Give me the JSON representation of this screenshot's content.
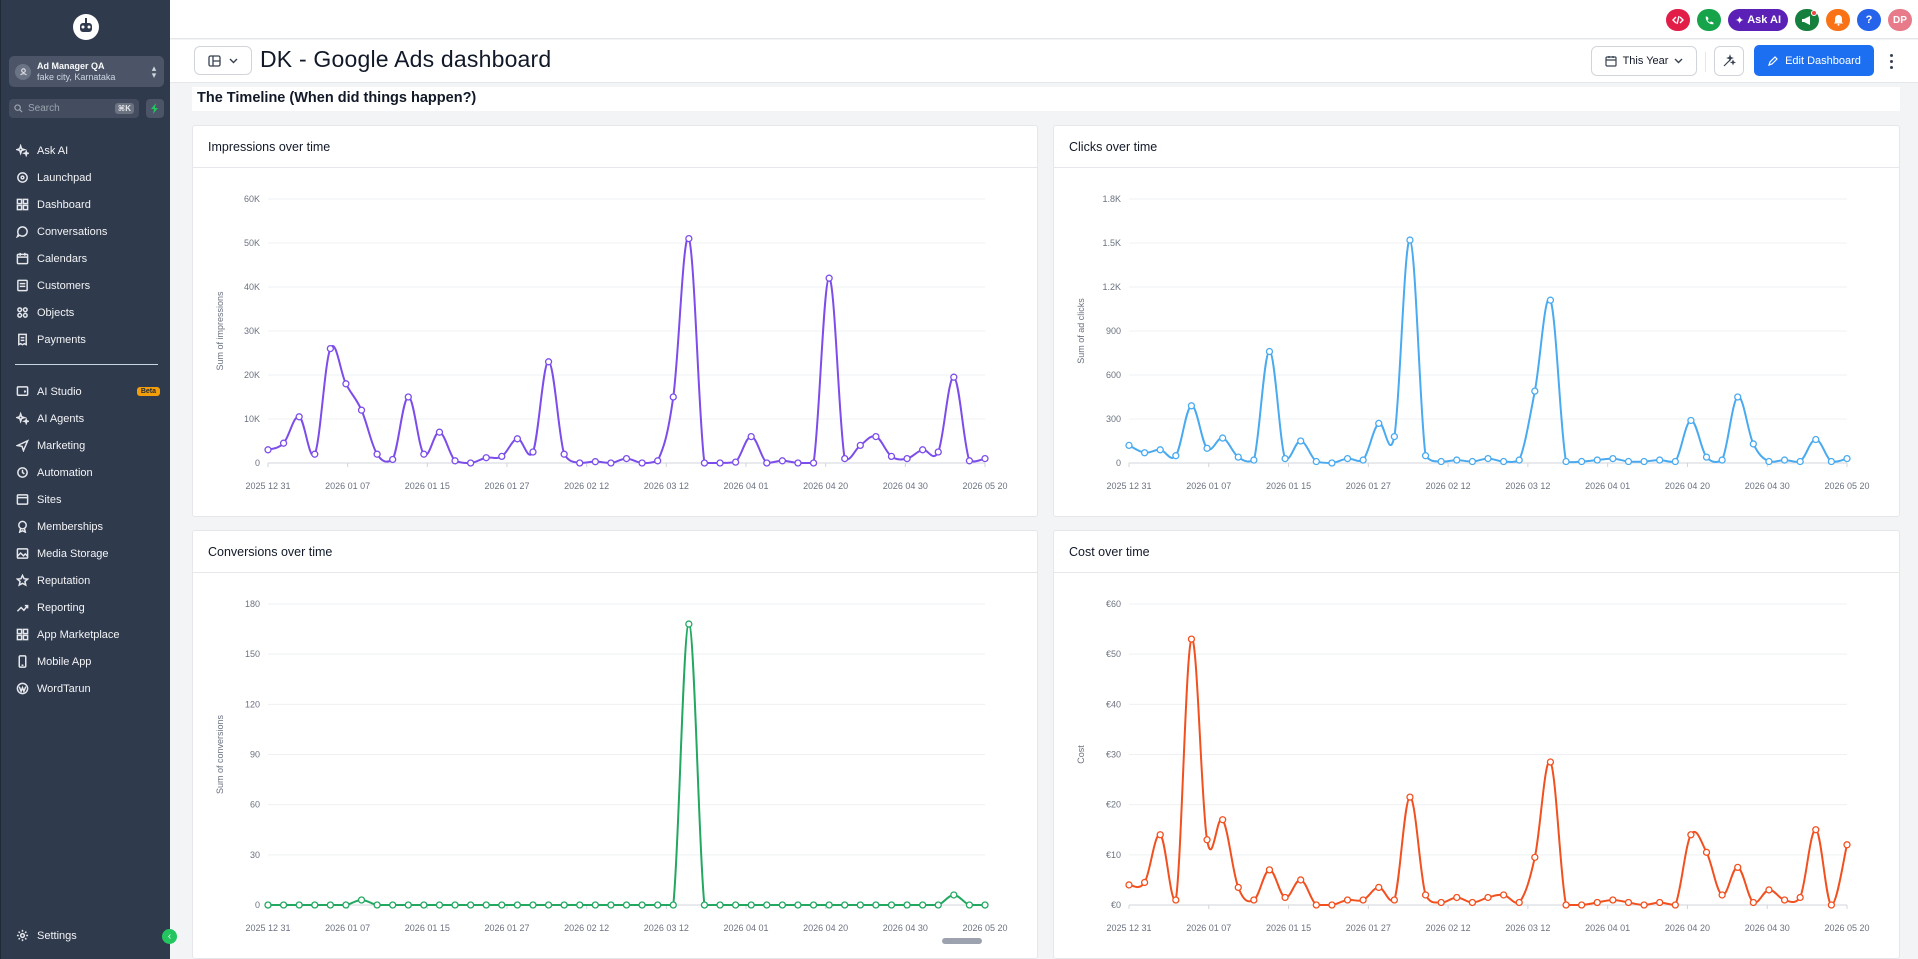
{
  "sidebar": {
    "account": {
      "name": "Ad Manager QA",
      "location": "fake city, Karnataka"
    },
    "search": {
      "placeholder": "Search",
      "shortcut": "⌘K"
    },
    "items": [
      {
        "label": "Ask AI",
        "icon": "sparkle-icon"
      },
      {
        "label": "Launchpad",
        "icon": "rocket-icon"
      },
      {
        "label": "Dashboard",
        "icon": "grid-icon"
      },
      {
        "label": "Conversations",
        "icon": "chat-icon"
      },
      {
        "label": "Calendars",
        "icon": "calendar-icon"
      },
      {
        "label": "Customers",
        "icon": "contacts-icon"
      },
      {
        "label": "Objects",
        "icon": "objects-icon"
      },
      {
        "label": "Payments",
        "icon": "receipt-icon"
      }
    ],
    "items2": [
      {
        "label": "AI Studio",
        "icon": "ai-studio-icon",
        "badge": "Beta"
      },
      {
        "label": "AI Agents",
        "icon": "sparkle-icon"
      },
      {
        "label": "Marketing",
        "icon": "send-icon"
      },
      {
        "label": "Automation",
        "icon": "automation-icon"
      },
      {
        "label": "Sites",
        "icon": "sites-icon"
      },
      {
        "label": "Memberships",
        "icon": "award-icon"
      },
      {
        "label": "Media Storage",
        "icon": "image-icon"
      },
      {
        "label": "Reputation",
        "icon": "star-icon"
      },
      {
        "label": "Reporting",
        "icon": "trend-icon"
      },
      {
        "label": "App Marketplace",
        "icon": "apps-icon"
      },
      {
        "label": "Mobile App",
        "icon": "phone-icon"
      },
      {
        "label": "WordTarun",
        "icon": "wordpress-icon"
      }
    ],
    "settings": "Settings"
  },
  "topbar": {
    "ask_ai": "Ask AI",
    "avatar": "DP"
  },
  "header": {
    "title": "DK - Google Ads dashboard",
    "timeframe": "This Year",
    "edit": "Edit Dashboard"
  },
  "section": {
    "title": "The Timeline (When did things happen?)"
  },
  "colors": {
    "impressions": "#7c4dea",
    "clicks": "#4aaaf0",
    "conversions": "#22a861",
    "cost": "#f2501f",
    "primary": "#1d6ff2",
    "sidebar": "#2f3a4d"
  },
  "chart_data": [
    {
      "type": "line",
      "title": "Impressions over time",
      "ylabel": "Sum of impressions",
      "yticks": [
        "0",
        "10K",
        "20K",
        "30K",
        "40K",
        "50K",
        "60K"
      ],
      "ymax": 60000,
      "xticks": [
        "2025 12 31",
        "2026 01 07",
        "2026 01 15",
        "2026 01 27",
        "2026 02 12",
        "2026 03 12",
        "2026 04 01",
        "2026 04 20",
        "2026 04 30",
        "2026 05 20"
      ],
      "values": [
        3000,
        4500,
        10500,
        2000,
        26000,
        18000,
        12000,
        2000,
        800,
        15000,
        2000,
        7000,
        500,
        0,
        1200,
        1500,
        5500,
        2500,
        23000,
        2000,
        0,
        300,
        0,
        1000,
        0,
        500,
        15000,
        51000,
        0,
        0,
        200,
        6000,
        0,
        500,
        0,
        0,
        42000,
        1000,
        4000,
        6000,
        1500,
        1000,
        3000,
        2500,
        19500,
        500,
        1000
      ]
    },
    {
      "type": "line",
      "title": "Clicks over time",
      "ylabel": "Sum of ad clicks",
      "yticks": [
        "0",
        "300",
        "600",
        "900",
        "1.2K",
        "1.5K",
        "1.8K"
      ],
      "ymax": 1800,
      "xticks": [
        "2025 12 31",
        "2026 01 07",
        "2026 01 15",
        "2026 01 27",
        "2026 02 12",
        "2026 03 12",
        "2026 04 01",
        "2026 04 20",
        "2026 04 30",
        "2026 05 20"
      ],
      "values": [
        120,
        70,
        90,
        50,
        390,
        100,
        170,
        40,
        20,
        760,
        30,
        150,
        10,
        0,
        30,
        20,
        270,
        180,
        1520,
        50,
        10,
        20,
        10,
        30,
        10,
        20,
        490,
        1110,
        10,
        10,
        20,
        30,
        10,
        10,
        20,
        10,
        290,
        40,
        20,
        450,
        130,
        10,
        20,
        10,
        160,
        10,
        30
      ]
    },
    {
      "type": "line",
      "title": "Conversions over time",
      "ylabel": "Sum of conversions",
      "yticks": [
        "0",
        "30",
        "60",
        "90",
        "120",
        "150",
        "180"
      ],
      "ymax": 180,
      "xticks": [
        "2025 12 31",
        "2026 01 07",
        "2026 01 15",
        "2026 01 27",
        "2026 02 12",
        "2026 03 12",
        "2026 04 01",
        "2026 04 20",
        "2026 04 30",
        "2026 05 20"
      ],
      "values": [
        0,
        0,
        0,
        0,
        0,
        0,
        3,
        0,
        0,
        0,
        0,
        0,
        0,
        0,
        0,
        0,
        0,
        0,
        0,
        0,
        0,
        0,
        0,
        0,
        0,
        0,
        0,
        168,
        0,
        0,
        0,
        0,
        0,
        0,
        0,
        0,
        0,
        0,
        0,
        0,
        0,
        0,
        0,
        0,
        6,
        0,
        0
      ]
    },
    {
      "type": "line",
      "title": "Cost over time",
      "ylabel": "Cost",
      "yticks": [
        "€0",
        "€10",
        "€20",
        "€30",
        "€40",
        "€50",
        "€60"
      ],
      "ymax": 60,
      "xticks": [
        "2025 12 31",
        "2026 01 07",
        "2026 01 15",
        "2026 01 27",
        "2026 02 12",
        "2026 03 12",
        "2026 04 01",
        "2026 04 20",
        "2026 04 30",
        "2026 05 20"
      ],
      "values": [
        4,
        4.5,
        14,
        1,
        53,
        13,
        17,
        3.5,
        1,
        7,
        1.5,
        5,
        0,
        0,
        1,
        1,
        3.5,
        1,
        21.5,
        2,
        0.5,
        1.5,
        0.5,
        1.5,
        2,
        0.5,
        9.5,
        28.5,
        0,
        0,
        0.5,
        1,
        0.5,
        0,
        0.5,
        0,
        14,
        10.5,
        2,
        7.5,
        0.5,
        3,
        1,
        1.5,
        15,
        0,
        12
      ]
    }
  ]
}
